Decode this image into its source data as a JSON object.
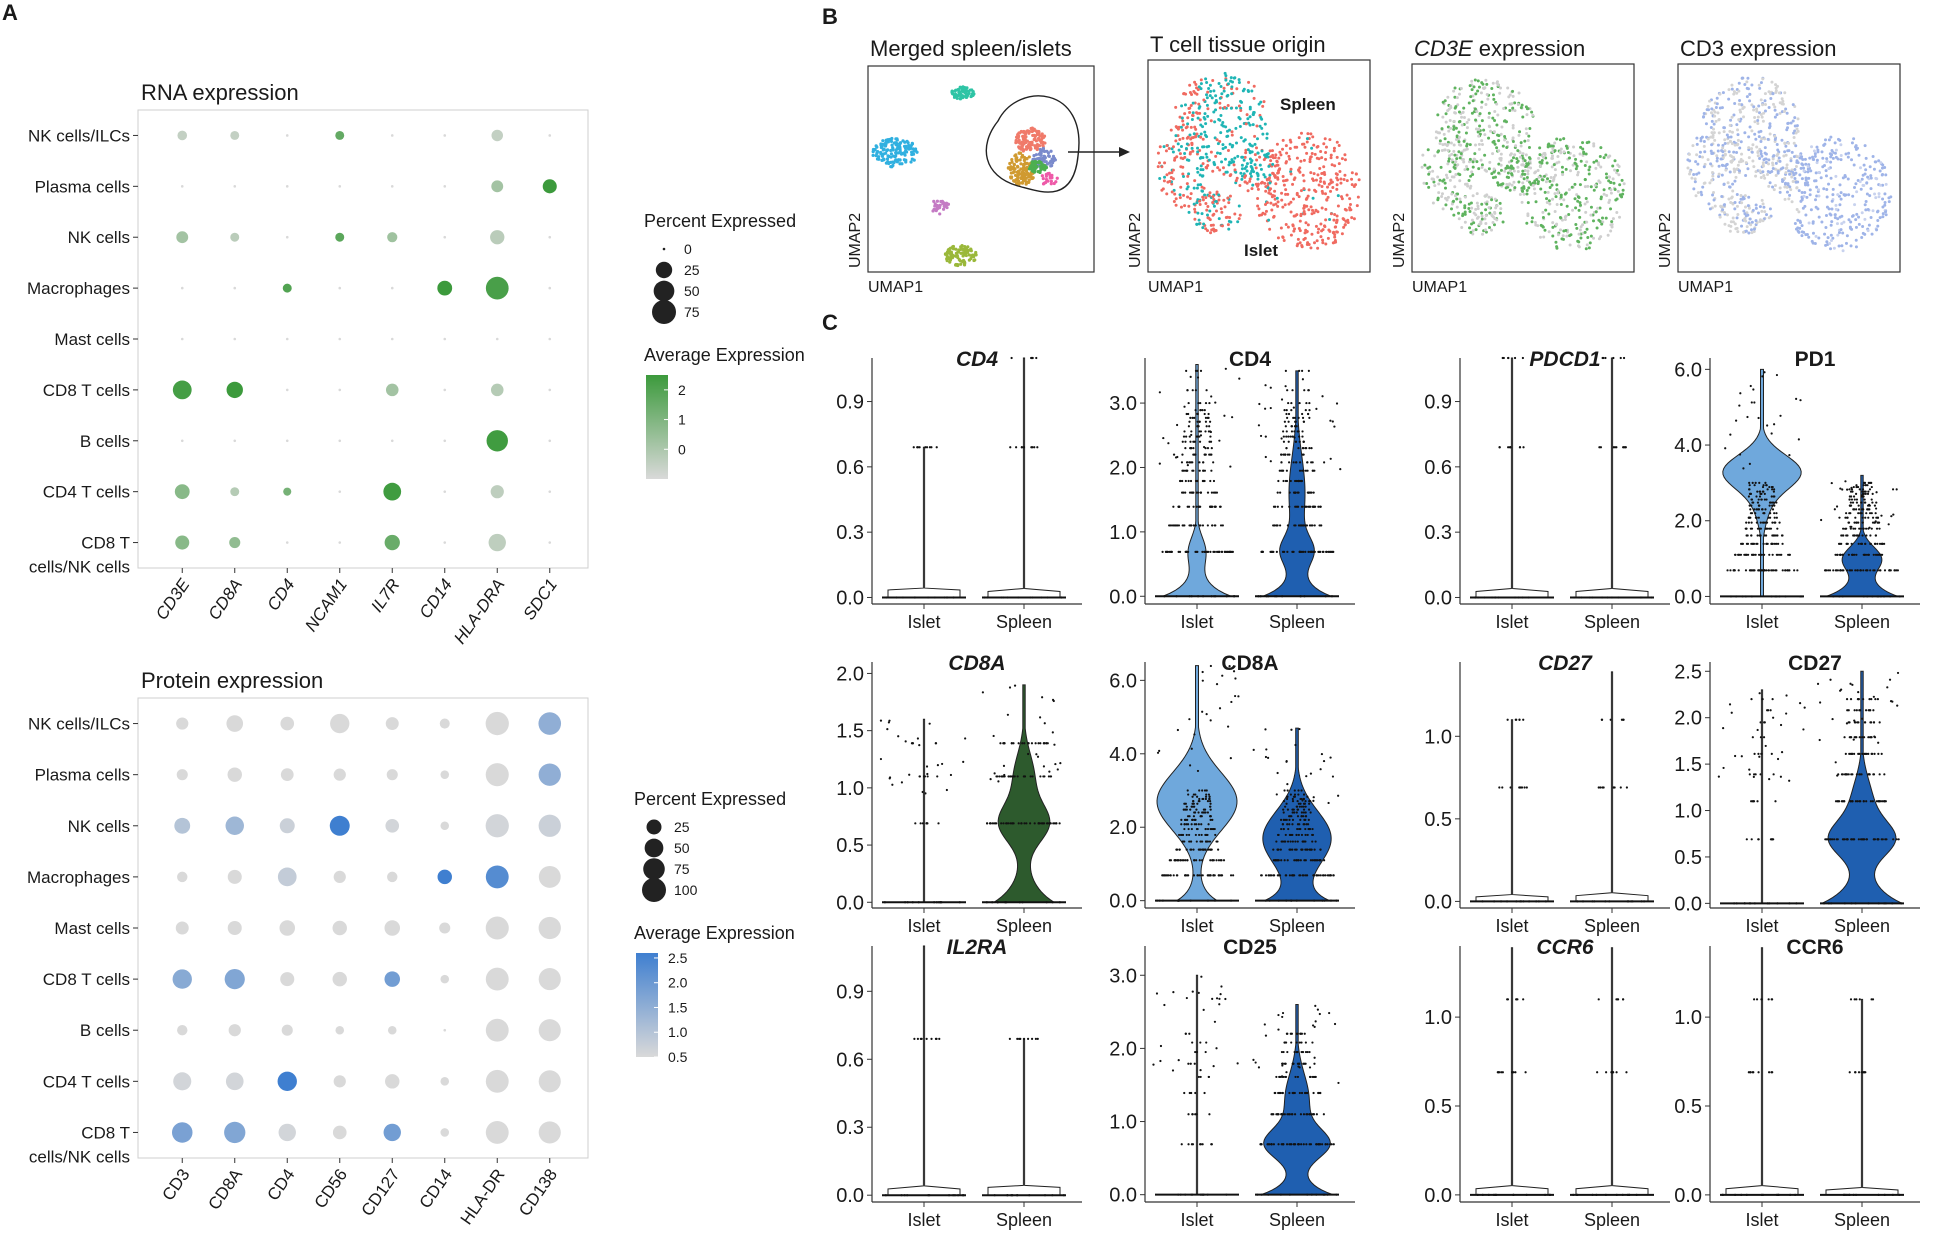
{
  "panels": {
    "a": "A",
    "b": "B",
    "c": "C"
  },
  "rna": {
    "title": "RNA expression",
    "rows": [
      "NK cells/ILCs",
      "Plasma cells",
      "NK cells",
      "Macrophages",
      "Mast cells",
      "CD8 T cells",
      "B cells",
      "CD4 T cells",
      "CD8 T\ncells/NK cells"
    ],
    "cols": [
      "CD3E",
      "CD8A",
      "CD4",
      "NCAM1",
      "IL7R",
      "CD14",
      "HLA-DRA",
      "SDC1"
    ],
    "legend_pct_title": "Percent Expressed",
    "legend_pct_values": [
      0,
      25,
      50,
      75
    ],
    "legend_avg_title": "Average Expression",
    "legend_avg_ticks": [
      2,
      1,
      0
    ],
    "color_low": "#d9d9d9",
    "color_high": "#3c9a3c"
  },
  "protein": {
    "title": "Protein expression",
    "rows": [
      "NK cells/ILCs",
      "Plasma cells",
      "NK cells",
      "Macrophages",
      "Mast cells",
      "CD8 T cells",
      "B cells",
      "CD4 T cells",
      "CD8 T\ncells/NK cells"
    ],
    "cols": [
      "CD3",
      "CD8A",
      "CD4",
      "CD56",
      "CD127",
      "CD14",
      "HLA-DR",
      "CD138"
    ],
    "legend_pct_title": "Percent Expressed",
    "legend_pct_values": [
      25,
      50,
      75,
      100
    ],
    "legend_avg_title": "Average Expression",
    "legend_avg_ticks": [
      "2.5",
      "2.0",
      "1.5",
      "1.0",
      "0.5"
    ],
    "color_low": "#d9d9d9",
    "color_high": "#3f7fd0"
  },
  "umap": {
    "titles": [
      "Merged spleen/islets",
      "T cell tissue origin",
      "CD3E expression",
      "CD3 expression"
    ],
    "title_italic": [
      false,
      false,
      true,
      false
    ],
    "title_suffix": [
      "",
      "",
      " expression",
      ""
    ],
    "xlabel": "UMAP1",
    "ylabel": "UMAP2",
    "spleen_label": "Spleen",
    "islet_label": "Islet",
    "spleen_color": "#1fb5b5",
    "islet_color": "#f06a60"
  },
  "violin_groups": [
    "Islet",
    "Spleen"
  ],
  "chart_data": [
    {
      "type": "dotplot",
      "title": "RNA expression",
      "rows": [
        "NK cells/ILCs",
        "Plasma cells",
        "NK cells",
        "Macrophages",
        "Mast cells",
        "CD8 T cells",
        "B cells",
        "CD4 T cells",
        "CD8 T cells/NK cells"
      ],
      "cols": [
        "CD3E",
        "CD8A",
        "CD4",
        "NCAM1",
        "IL7R",
        "CD14",
        "HLA-DRA",
        "SDC1"
      ],
      "percent_expressed": [
        [
          3,
          2,
          0,
          2,
          0,
          0,
          7,
          0
        ],
        [
          0,
          0,
          0,
          0,
          0,
          0,
          8,
          15
        ],
        [
          8,
          2,
          0,
          2,
          4,
          0,
          16,
          0
        ],
        [
          0,
          0,
          2,
          0,
          0,
          18,
          65,
          0
        ],
        [
          0,
          0,
          0,
          0,
          0,
          0,
          0,
          0
        ],
        [
          38,
          25,
          0,
          0,
          10,
          0,
          10,
          0
        ],
        [
          0,
          0,
          0,
          0,
          0,
          0,
          55,
          0
        ],
        [
          18,
          2,
          1,
          0,
          32,
          0,
          12,
          0
        ],
        [
          15,
          6,
          0,
          0,
          20,
          0,
          30,
          0
        ]
      ],
      "average_expression": [
        [
          -0.5,
          -0.5,
          -1,
          1.6,
          -1,
          -1,
          -0.5,
          -1
        ],
        [
          -1,
          -1,
          -1,
          -1,
          -1,
          -1,
          0.2,
          2.6
        ],
        [
          0.2,
          -0.3,
          -1,
          1.8,
          0.3,
          -1,
          -0.3,
          -1
        ],
        [
          -1,
          -1,
          2,
          -1,
          -1,
          2.7,
          2.2,
          -1
        ],
        [
          -1,
          -1,
          -1,
          -1,
          -1,
          -1,
          -1,
          -1
        ],
        [
          2.3,
          2.5,
          -1,
          -1,
          0.2,
          -1,
          -0.2,
          -1
        ],
        [
          -1,
          -1,
          -1,
          -1,
          -1,
          -1,
          2.4,
          -1
        ],
        [
          0.8,
          -0.2,
          1.2,
          -1,
          2.4,
          -1,
          -0.4,
          -1
        ],
        [
          0.8,
          0.6,
          -1,
          -1,
          1.5,
          -1,
          -0.4,
          -1
        ]
      ],
      "size_legend": {
        "title": "Percent Expressed",
        "values": [
          0,
          25,
          50,
          75
        ]
      },
      "color_legend": {
        "title": "Average Expression",
        "ticks": [
          2,
          1,
          0
        ],
        "range": [
          -1,
          2.5
        ]
      }
    },
    {
      "type": "dotplot",
      "title": "Protein expression",
      "rows": [
        "NK cells/ILCs",
        "Plasma cells",
        "NK cells",
        "Macrophages",
        "Mast cells",
        "CD8 T cells",
        "B cells",
        "CD4 T cells",
        "CD8 T cells/NK cells"
      ],
      "cols": [
        "CD3",
        "CD8A",
        "CD4",
        "CD56",
        "CD127",
        "CD14",
        "HLA-DR",
        "CD138"
      ],
      "percent_expressed": [
        [
          12,
          35,
          18,
          55,
          15,
          5,
          92,
          85
        ],
        [
          8,
          22,
          14,
          12,
          8,
          2,
          90,
          82
        ],
        [
          30,
          48,
          25,
          60,
          18,
          2,
          92,
          82
        ],
        [
          6,
          20,
          50,
          12,
          6,
          22,
          88,
          78
        ],
        [
          15,
          20,
          28,
          22,
          28,
          8,
          90,
          82
        ],
        [
          55,
          62,
          20,
          22,
          28,
          2,
          88,
          80
        ],
        [
          6,
          12,
          8,
          2,
          2,
          0,
          88,
          80
        ],
        [
          45,
          42,
          55,
          12,
          22,
          2,
          88,
          80
        ],
        [
          65,
          72,
          40,
          18,
          40,
          2,
          88,
          80
        ]
      ],
      "average_expression": [
        [
          0.5,
          0.5,
          0.5,
          0.5,
          0.5,
          0.5,
          0.5,
          1.5
        ],
        [
          0.5,
          0.5,
          0.5,
          0.5,
          0.5,
          0.5,
          0.5,
          1.5
        ],
        [
          1.0,
          1.3,
          0.7,
          2.6,
          0.6,
          0.5,
          0.6,
          0.7
        ],
        [
          0.5,
          0.5,
          0.8,
          0.5,
          0.5,
          2.7,
          2.3,
          0.5
        ],
        [
          0.5,
          0.5,
          0.5,
          0.5,
          0.5,
          0.5,
          0.5,
          0.5
        ],
        [
          1.6,
          1.7,
          0.5,
          0.5,
          1.9,
          0.5,
          0.5,
          0.5
        ],
        [
          0.5,
          0.5,
          0.5,
          0.5,
          0.5,
          0.5,
          0.5,
          0.5
        ],
        [
          0.6,
          0.6,
          2.6,
          0.5,
          0.5,
          0.5,
          0.5,
          0.5
        ],
        [
          1.8,
          1.7,
          0.6,
          0.5,
          1.9,
          0.5,
          0.5,
          0.5
        ]
      ],
      "size_legend": {
        "title": "Percent Expressed",
        "values": [
          25,
          50,
          75,
          100
        ]
      },
      "color_legend": {
        "title": "Average Expression",
        "ticks": [
          2.5,
          2.0,
          1.5,
          1.0,
          0.5
        ],
        "range": [
          0.5,
          2.6
        ]
      }
    },
    {
      "type": "violin",
      "violins": [
        {
          "title": "CD4",
          "italic": true,
          "groups": [
            "Islet",
            "Spleen"
          ],
          "yticks": [
            "0.0",
            "0.3",
            "0.6",
            "0.9"
          ],
          "ylim": [
            -0.03,
            1.1
          ],
          "levels": [
            0.69,
            1.1
          ],
          "shape": "spike",
          "colors": [
            "#ffffff",
            "#ffffff"
          ],
          "max": [
            0.69,
            1.1
          ]
        },
        {
          "title": "CD4",
          "italic": false,
          "groups": [
            "Islet",
            "Spleen"
          ],
          "yticks": [
            "0.0",
            "1.0",
            "2.0",
            "3.0"
          ],
          "ylim": [
            -0.12,
            3.7
          ],
          "levels": [
            0.69,
            1.1,
            1.39,
            1.61,
            1.79,
            1.95,
            2.08,
            2.2,
            2.3,
            2.4,
            2.48,
            2.56,
            2.64,
            2.71,
            2.77,
            2.83,
            2.89,
            3.0,
            3.2,
            3.5
          ],
          "shape": "lowbump",
          "colors": [
            "#6fa8dc",
            "#1f5fb0"
          ],
          "max": [
            3.6,
            3.5
          ]
        },
        {
          "title": "PDCD1",
          "italic": true,
          "groups": [
            "Islet",
            "Spleen"
          ],
          "yticks": [
            "0.0",
            "0.3",
            "0.6",
            "0.9"
          ],
          "ylim": [
            -0.03,
            1.1
          ],
          "levels": [
            0.69,
            1.1
          ],
          "shape": "spike",
          "colors": [
            "#ffffff",
            "#ffffff"
          ],
          "max": [
            1.1,
            1.1
          ]
        },
        {
          "title": "PD1",
          "italic": false,
          "groups": [
            "Islet",
            "Spleen"
          ],
          "yticks": [
            "0.0",
            "2.0",
            "4.0",
            "6.0"
          ],
          "ylim": [
            -0.2,
            6.3
          ],
          "levels": [
            0.69,
            1.1,
            1.39,
            1.61,
            1.79,
            1.95,
            2.08,
            2.2,
            2.3,
            2.4,
            2.48,
            2.56,
            2.64,
            2.71,
            2.77,
            2.83,
            2.89,
            2.94,
            3.0
          ],
          "shape": "pd1",
          "colors": [
            "#6fa8dc",
            "#1f5fb0"
          ],
          "max": [
            6.0,
            3.2
          ]
        },
        {
          "title": "CD8A",
          "italic": true,
          "groups": [
            "Islet",
            "Spleen"
          ],
          "yticks": [
            "0.0",
            "0.5",
            "1.0",
            "1.5",
            "2.0"
          ],
          "ylim": [
            -0.05,
            2.1
          ],
          "levels": [
            0.69,
            1.1,
            1.39
          ],
          "shape": "cd8arna",
          "colors": [
            "#ffffff",
            "#2d5a2d"
          ],
          "max": [
            1.6,
            1.9
          ]
        },
        {
          "title": "CD8A",
          "italic": false,
          "groups": [
            "Islet",
            "Spleen"
          ],
          "yticks": [
            "0.0",
            "2.0",
            "4.0",
            "6.0"
          ],
          "ylim": [
            -0.2,
            6.5
          ],
          "levels": [
            0.69,
            1.1,
            1.39,
            1.61,
            1.79,
            1.95,
            2.08,
            2.2,
            2.3,
            2.4,
            2.48,
            2.56,
            2.64,
            2.71,
            2.77,
            2.83,
            2.89,
            3.0
          ],
          "shape": "cd8a",
          "colors": [
            "#6fa8dc",
            "#1f5fb0"
          ],
          "max": [
            6.4,
            4.7
          ]
        },
        {
          "title": "CD27",
          "italic": true,
          "groups": [
            "Islet",
            "Spleen"
          ],
          "yticks": [
            "0.0",
            "0.5",
            "1.0"
          ],
          "ylim": [
            -0.04,
            1.45
          ],
          "levels": [
            0.69,
            1.1
          ],
          "shape": "spike",
          "colors": [
            "#ffffff",
            "#ffffff"
          ],
          "max": [
            1.1,
            1.39
          ]
        },
        {
          "title": "CD27",
          "italic": false,
          "groups": [
            "Islet",
            "Spleen"
          ],
          "yticks": [
            "0.0",
            "0.5",
            "1.0",
            "1.5",
            "2.0",
            "2.5"
          ],
          "ylim": [
            -0.05,
            2.6
          ],
          "levels": [
            0.69,
            1.1,
            1.39,
            1.61,
            1.79,
            1.95,
            2.08,
            2.2
          ],
          "shape": "cd27",
          "colors": [
            "#ffffff",
            "#1f5fb0"
          ],
          "max": [
            2.3,
            2.5
          ]
        },
        {
          "title": "IL2RA",
          "italic": true,
          "groups": [
            "Islet",
            "Spleen"
          ],
          "yticks": [
            "0.0",
            "0.3",
            "0.6",
            "0.9"
          ],
          "ylim": [
            -0.03,
            1.1
          ],
          "levels": [
            0.69
          ],
          "shape": "spike",
          "colors": [
            "#ffffff",
            "#ffffff"
          ],
          "max": [
            1.1,
            0.69
          ]
        },
        {
          "title": "CD25",
          "italic": false,
          "groups": [
            "Islet",
            "Spleen"
          ],
          "yticks": [
            "0.0",
            "1.0",
            "2.0",
            "3.0"
          ],
          "ylim": [
            -0.1,
            3.4
          ],
          "levels": [
            0.69,
            1.1,
            1.39,
            1.61,
            1.79,
            1.95,
            2.08,
            2.2
          ],
          "shape": "cd25",
          "colors": [
            "#ffffff",
            "#1f5fb0"
          ],
          "max": [
            3.0,
            2.6
          ]
        },
        {
          "title": "CCR6",
          "italic": true,
          "groups": [
            "Islet",
            "Spleen"
          ],
          "yticks": [
            "0.0",
            "0.5",
            "1.0"
          ],
          "ylim": [
            -0.04,
            1.4
          ],
          "levels": [
            0.69,
            1.1
          ],
          "shape": "spike",
          "colors": [
            "#ffffff",
            "#ffffff"
          ],
          "max": [
            1.39,
            1.39
          ]
        },
        {
          "title": "CCR6",
          "italic": false,
          "groups": [
            "Islet",
            "Spleen"
          ],
          "yticks": [
            "0.0",
            "0.5",
            "1.0"
          ],
          "ylim": [
            -0.04,
            1.4
          ],
          "levels": [
            0.69,
            1.1
          ],
          "shape": "spike",
          "colors": [
            "#ffffff",
            "#ffffff"
          ],
          "max": [
            1.39,
            1.1
          ]
        }
      ]
    }
  ]
}
